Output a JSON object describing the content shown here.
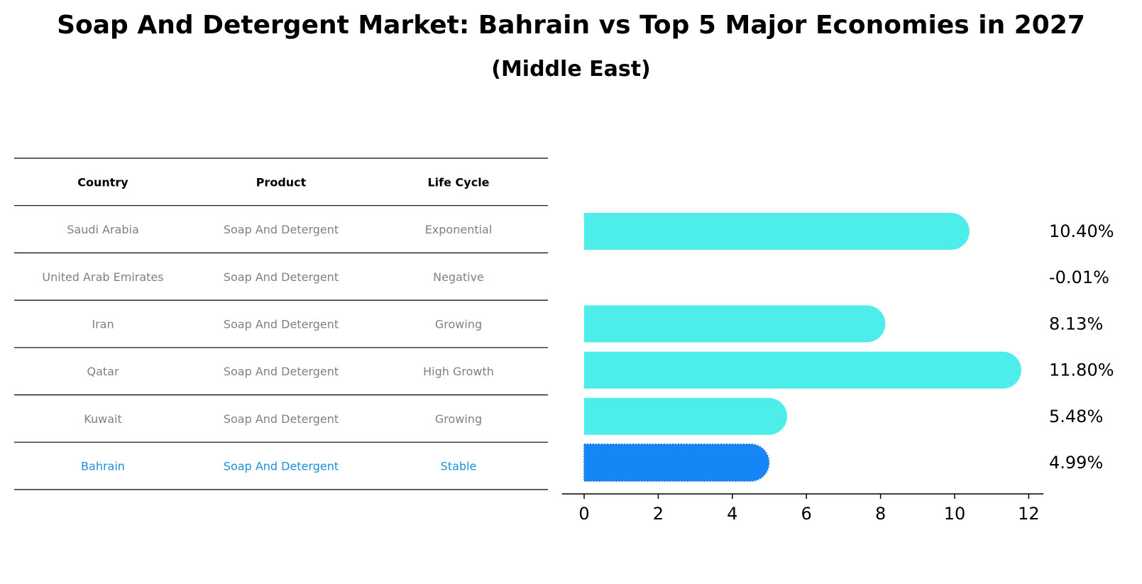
{
  "title": "Soap And Detergent Market: Bahrain vs Top 5 Major Economies in 2027",
  "subtitle": "(Middle East)",
  "table": {
    "headers": [
      "Country",
      "Product",
      "Life Cycle"
    ],
    "rows": [
      [
        "Saudi Arabia",
        "Soap And Detergent",
        "Exponential"
      ],
      [
        "United Arab Emirates",
        "Soap And Detergent",
        "Negative"
      ],
      [
        "Iran",
        "Soap And Detergent",
        "Growing"
      ],
      [
        "Qatar",
        "Soap And Detergent",
        "High Growth"
      ],
      [
        "Kuwait",
        "Soap And Detergent",
        "Growing"
      ],
      [
        "Bahrain",
        "Soap And Detergent",
        "Stable"
      ]
    ],
    "highlight_row": 5,
    "highlight_color": "#1a8fd8",
    "text_color": "#808080"
  },
  "chart_data": {
    "type": "bar",
    "orientation": "horizontal",
    "categories": [
      "Saudi Arabia",
      "United Arab Emirates",
      "Iran",
      "Qatar",
      "Kuwait",
      "Bahrain"
    ],
    "values": [
      10.4,
      -0.01,
      8.13,
      11.8,
      5.48,
      4.99
    ],
    "value_labels": [
      "10.40%",
      "-0.01%",
      "8.13%",
      "11.80%",
      "5.48%",
      "4.99%"
    ],
    "xlim": [
      -0.6,
      12.4
    ],
    "xticks": [
      0,
      2,
      4,
      6,
      8,
      10,
      12
    ],
    "bar_color": "#4deeea",
    "highlight_color": "#1685f6",
    "highlight_index": 5,
    "grid": false
  }
}
